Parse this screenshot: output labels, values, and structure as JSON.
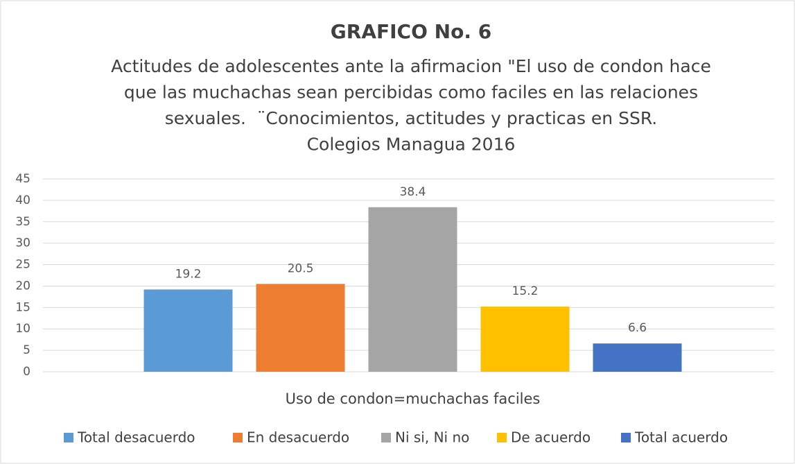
{
  "chart_data": {
    "type": "bar",
    "title": "GRAFICO No. 6",
    "subtitle": [
      "Actitudes de adolescentes ante la afirmacion \"El uso de condon hace",
      "que las muchachas sean percibidas como faciles en las relaciones",
      "sexuales.  ¨Conocimientos, actitudes y practicas en SSR.",
      "Colegios Managua 2016"
    ],
    "categories": [
      "Uso de condon=muchachas faciles"
    ],
    "series": [
      {
        "name": "Total desacuerdo",
        "color": "#5b9bd5",
        "values": [
          19.2
        ]
      },
      {
        "name": "En desacuerdo",
        "color": "#ed7d31",
        "values": [
          20.5
        ]
      },
      {
        "name": "Ni si, Ni no",
        "color": "#a5a5a5",
        "values": [
          38.4
        ]
      },
      {
        "name": "De acuerdo",
        "color": "#ffc000",
        "values": [
          15.2
        ]
      },
      {
        "name": "Total acuerdo",
        "color": "#4472c4",
        "values": [
          6.6
        ]
      }
    ],
    "ylim": [
      0,
      45
    ],
    "yticks": [
      0,
      5,
      10,
      15,
      20,
      25,
      30,
      35,
      40,
      45
    ],
    "grid": true,
    "legend": "bottom"
  }
}
